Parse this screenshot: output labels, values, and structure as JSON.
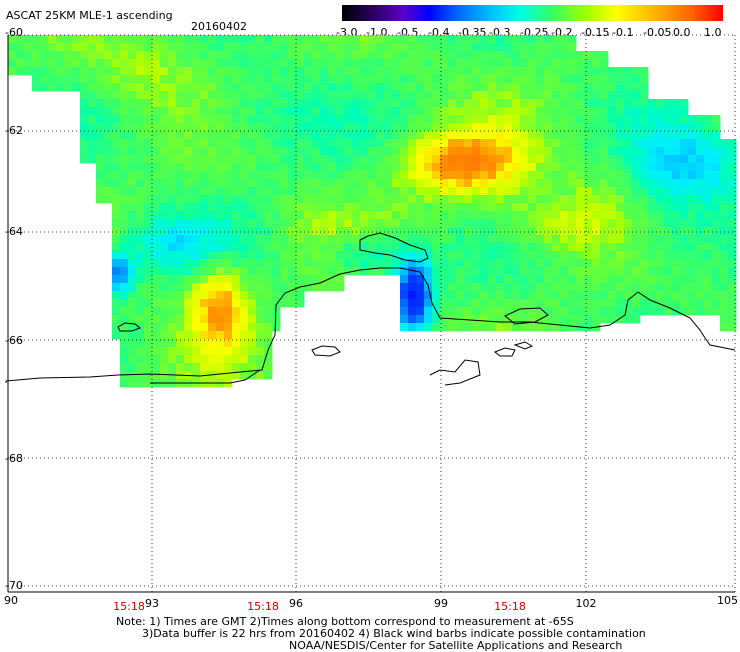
{
  "header": {
    "title": "ASCAT 25KM MLE-1 ascending",
    "date": "20160402"
  },
  "colorbar": {
    "labels": [
      "-3.0",
      "-1.0",
      "-0.5",
      "-0.4",
      "-0.35",
      "-0.3",
      "-0.25",
      "-0.2",
      "-0.15",
      "-0.1",
      "-0.05",
      "0.0",
      "1.0"
    ],
    "colors": [
      "#000000",
      "#2a0060",
      "#5a00c8",
      "#0028ff",
      "#0096ff",
      "#00dcff",
      "#00ffc8",
      "#32ff32",
      "#b4ff00",
      "#ffff00",
      "#ffa000",
      "#ff5000",
      "#ff0000"
    ]
  },
  "axes": {
    "lat_labels": [
      "-60",
      "-62",
      "-64",
      "-66",
      "-68",
      "-70"
    ],
    "lon_labels": [
      "90",
      "93",
      "96",
      "99",
      "102",
      "105"
    ]
  },
  "times": [
    "15:18",
    "15:18",
    "15:18"
  ],
  "notes": {
    "line1": "Note: 1) Times are GMT 2)Times along bottom correspond to measurement at -65S",
    "line2": "3)Data buffer is 22 hrs from 20160402 4) Black wind barbs indicate possible contamination",
    "line3": "NOAA/NESDIS/Center for Satellite Applications and Research"
  },
  "map_colors": {
    "land": "#ffffff",
    "coast": "#000000",
    "grid": "#000000"
  }
}
